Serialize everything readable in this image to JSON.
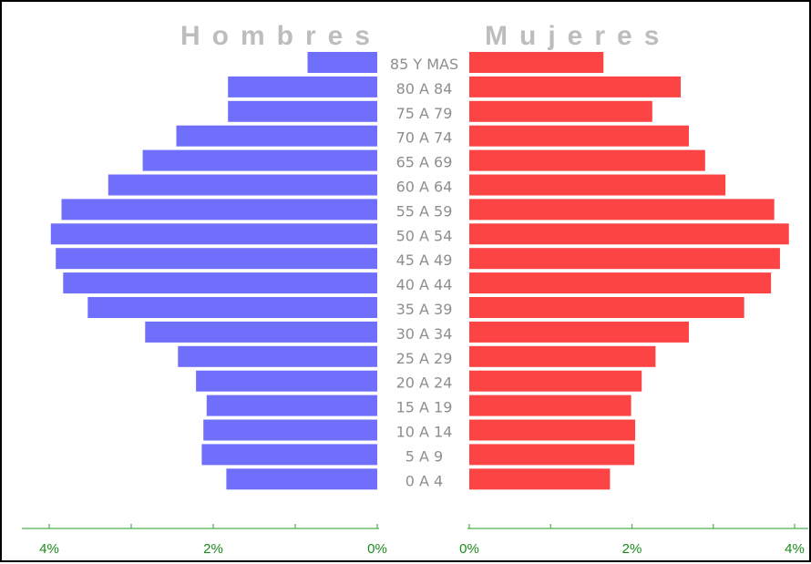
{
  "chart_data": {
    "type": "bar",
    "left_title": "Hombres",
    "right_title": "Mujeres",
    "categories": [
      "85 Y MAS",
      "80 A 84",
      "75 A 79",
      "70 A 74",
      "65 A 69",
      "60 A 64",
      "55 A 59",
      "50 A 54",
      "45 A 49",
      "40 A 44",
      "35 A 39",
      "30 A 34",
      "25 A 29",
      "20 A 24",
      "15 A 19",
      "10 A 14",
      "5 A 9",
      "0 A 4"
    ],
    "series": [
      {
        "name": "Hombres",
        "side": "left",
        "color": "#6f6ffc",
        "values": [
          0.85,
          1.82,
          1.82,
          2.45,
          2.86,
          3.28,
          3.85,
          3.98,
          3.92,
          3.83,
          3.53,
          2.83,
          2.43,
          2.21,
          2.08,
          2.12,
          2.14,
          1.84
        ]
      },
      {
        "name": "Mujeres",
        "side": "right",
        "color": "#fc4444",
        "values": [
          1.65,
          2.6,
          2.25,
          2.7,
          2.9,
          3.15,
          3.75,
          3.93,
          3.82,
          3.71,
          3.38,
          2.7,
          2.29,
          2.12,
          1.99,
          2.04,
          2.03,
          1.73
        ]
      }
    ],
    "xlim": [
      0,
      4
    ],
    "xticks_left": [
      "4%",
      "2%",
      "0%"
    ],
    "xticks_right": [
      "0%",
      "2%",
      "4%"
    ],
    "tick_values_left": [
      4,
      2,
      0
    ],
    "tick_values_right": [
      0,
      2,
      4
    ]
  },
  "colors": {
    "axis": "#4caf50",
    "tick_text": "#1a8a1a",
    "age_text": "#8e8e8e",
    "title_text": "#bdbdbd"
  }
}
